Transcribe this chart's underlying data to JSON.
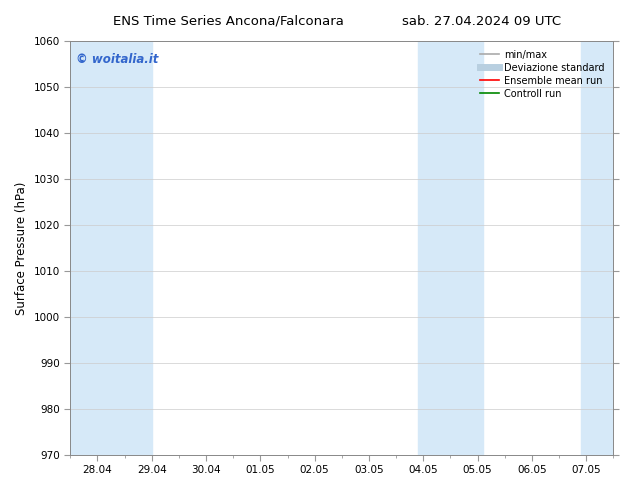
{
  "title_left": "ENS Time Series Ancona/Falconara",
  "title_right": "sab. 27.04.2024 09 UTC",
  "ylabel": "Surface Pressure (hPa)",
  "ylim": [
    970,
    1060
  ],
  "yticks": [
    970,
    980,
    990,
    1000,
    1010,
    1020,
    1030,
    1040,
    1050,
    1060
  ],
  "xtick_labels": [
    "28.04",
    "29.04",
    "30.04",
    "01.05",
    "02.05",
    "03.05",
    "04.05",
    "05.05",
    "06.05",
    "07.05"
  ],
  "xtick_positions": [
    0,
    1,
    2,
    3,
    4,
    5,
    6,
    7,
    8,
    9
  ],
  "shaded_bands": [
    {
      "xmin": -0.5,
      "xmax": 1.0,
      "color": "#d6e9f8"
    },
    {
      "xmin": 5.9,
      "xmax": 7.1,
      "color": "#d6e9f8"
    },
    {
      "xmin": 8.9,
      "xmax": 9.6,
      "color": "#d6e9f8"
    }
  ],
  "legend_entries": [
    {
      "label": "min/max",
      "color": "#aaaaaa",
      "lw": 1.2
    },
    {
      "label": "Deviazione standard",
      "color": "#b8cfe0",
      "lw": 5
    },
    {
      "label": "Ensemble mean run",
      "color": "#ff0000",
      "lw": 1.2
    },
    {
      "label": "Controll run",
      "color": "#008800",
      "lw": 1.2
    }
  ],
  "watermark": "© woitalia.it",
  "watermark_color": "#3366cc",
  "background_color": "#ffffff",
  "grid_color": "#cccccc",
  "tick_label_fontsize": 7.5,
  "axis_label_fontsize": 8.5,
  "title_fontsize": 9.5
}
